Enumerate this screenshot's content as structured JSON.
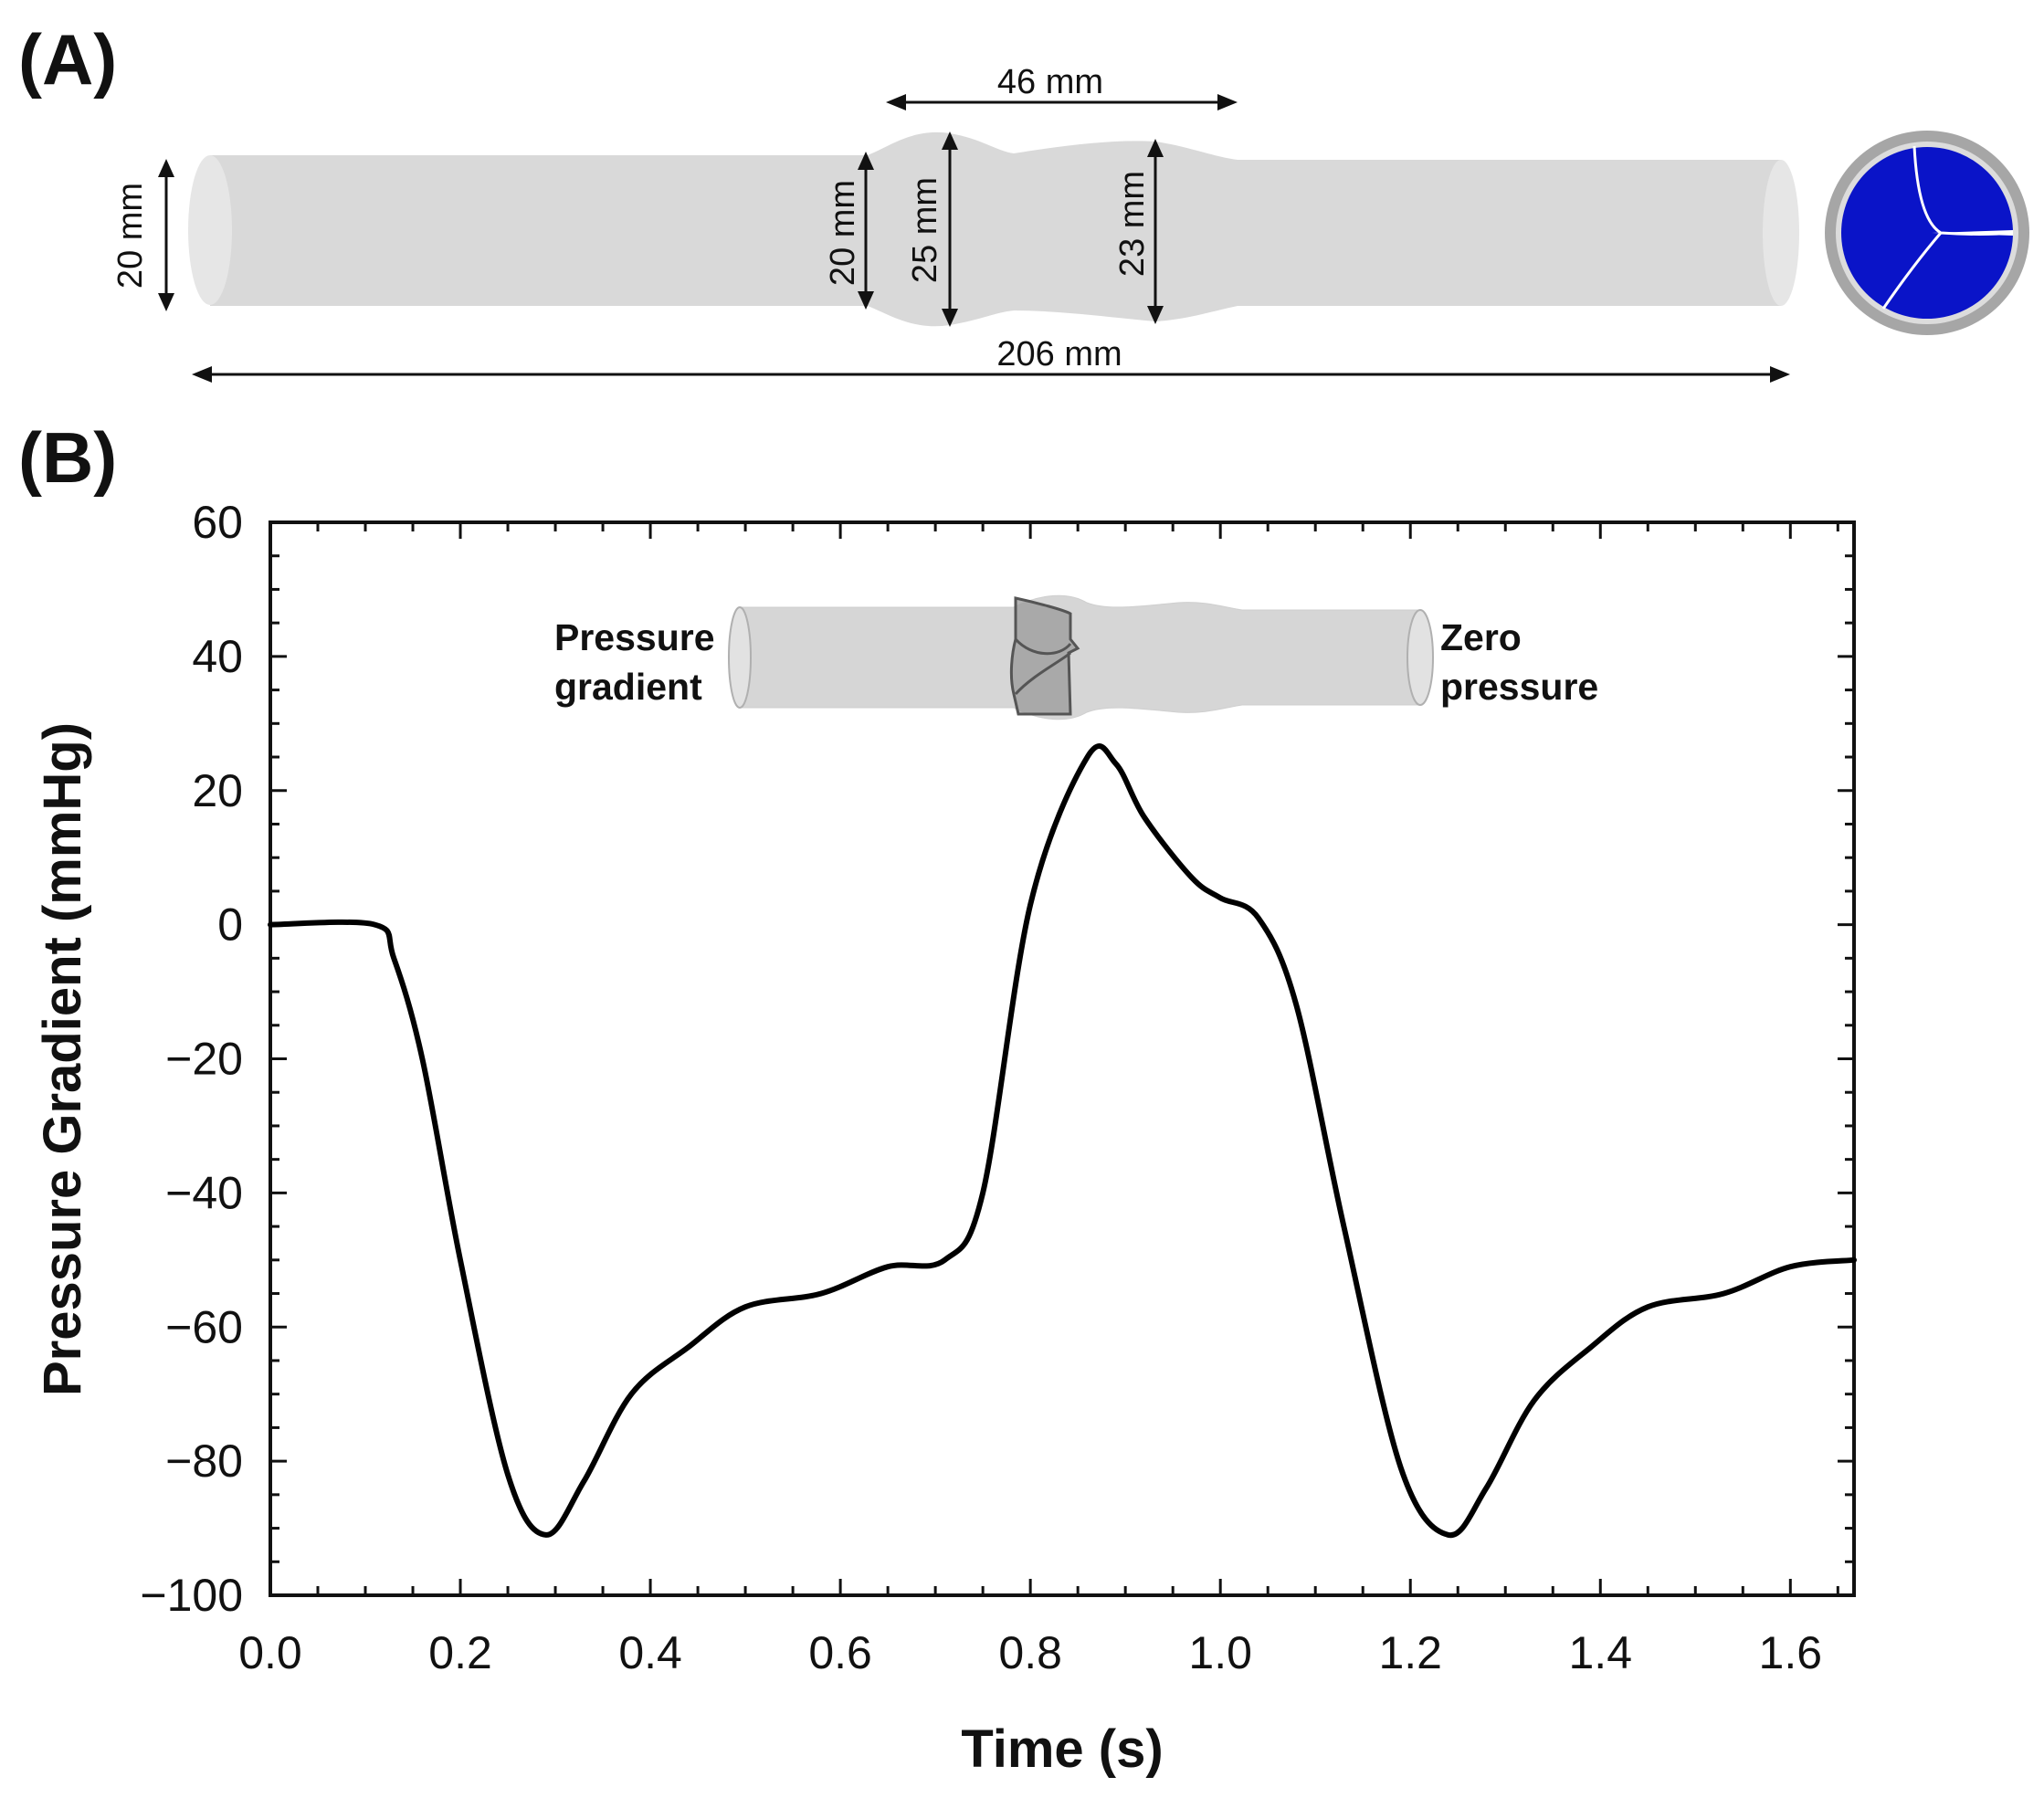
{
  "panel_a": {
    "label": "(A)",
    "dims": {
      "length": "46 mm",
      "total": "206 mm",
      "d_inlet": "20 mm",
      "d_valve_in": "20 mm",
      "d_sinus": "25 mm",
      "d_outlet": "23 mm"
    },
    "colors": {
      "tube": "#d9d9d9",
      "valve_blue": "#0a14c8",
      "ring": "#a6a6a6"
    }
  },
  "panel_b": {
    "label": "(B)",
    "inset": {
      "left_line1": "Pressure",
      "left_line2": "gradient",
      "right_line1": "Zero",
      "right_line2": "pressure"
    }
  },
  "chart_data": {
    "type": "line",
    "title": "",
    "xlabel": "Time (s)",
    "ylabel": "Pressure Gradient (mmHg)",
    "xlim": [
      0.0,
      1.667
    ],
    "ylim": [
      -100,
      60
    ],
    "xticks": [
      0.0,
      0.2,
      0.4,
      0.6,
      0.8,
      1.0,
      1.2,
      1.4,
      1.6
    ],
    "xtick_labels": [
      "0.0",
      "0.2",
      "0.4",
      "0.6",
      "0.8",
      "1.0",
      "1.2",
      "1.4",
      "1.6"
    ],
    "yticks": [
      60,
      40,
      20,
      0,
      -20,
      -40,
      -60,
      -80,
      -100
    ],
    "ytick_labels": [
      "60",
      "40",
      "20",
      "0",
      "−20",
      "−40",
      "−60",
      "−80",
      "−100"
    ],
    "grid": false,
    "line_color": "#000000",
    "series": [
      {
        "name": "Pressure Gradient",
        "x": [
          0.0,
          0.11,
          0.13,
          0.16,
          0.2,
          0.25,
          0.29,
          0.33,
          0.38,
          0.44,
          0.5,
          0.58,
          0.65,
          0.71,
          0.75,
          0.8,
          0.86,
          0.89,
          0.92,
          0.97,
          1.0,
          1.04,
          1.08,
          1.13,
          1.19,
          1.24,
          1.28,
          1.33,
          1.39,
          1.45,
          1.53,
          1.6,
          1.667
        ],
        "y": [
          0,
          0,
          -5,
          -20,
          -50,
          -82,
          -91,
          -83,
          -70,
          -63,
          -57,
          -55,
          -51,
          -50,
          -40,
          3,
          25,
          24,
          16,
          7,
          4,
          1,
          -12,
          -45,
          -81,
          -91,
          -84,
          -71,
          -63,
          -57,
          -55,
          -51,
          -50
        ]
      }
    ]
  }
}
